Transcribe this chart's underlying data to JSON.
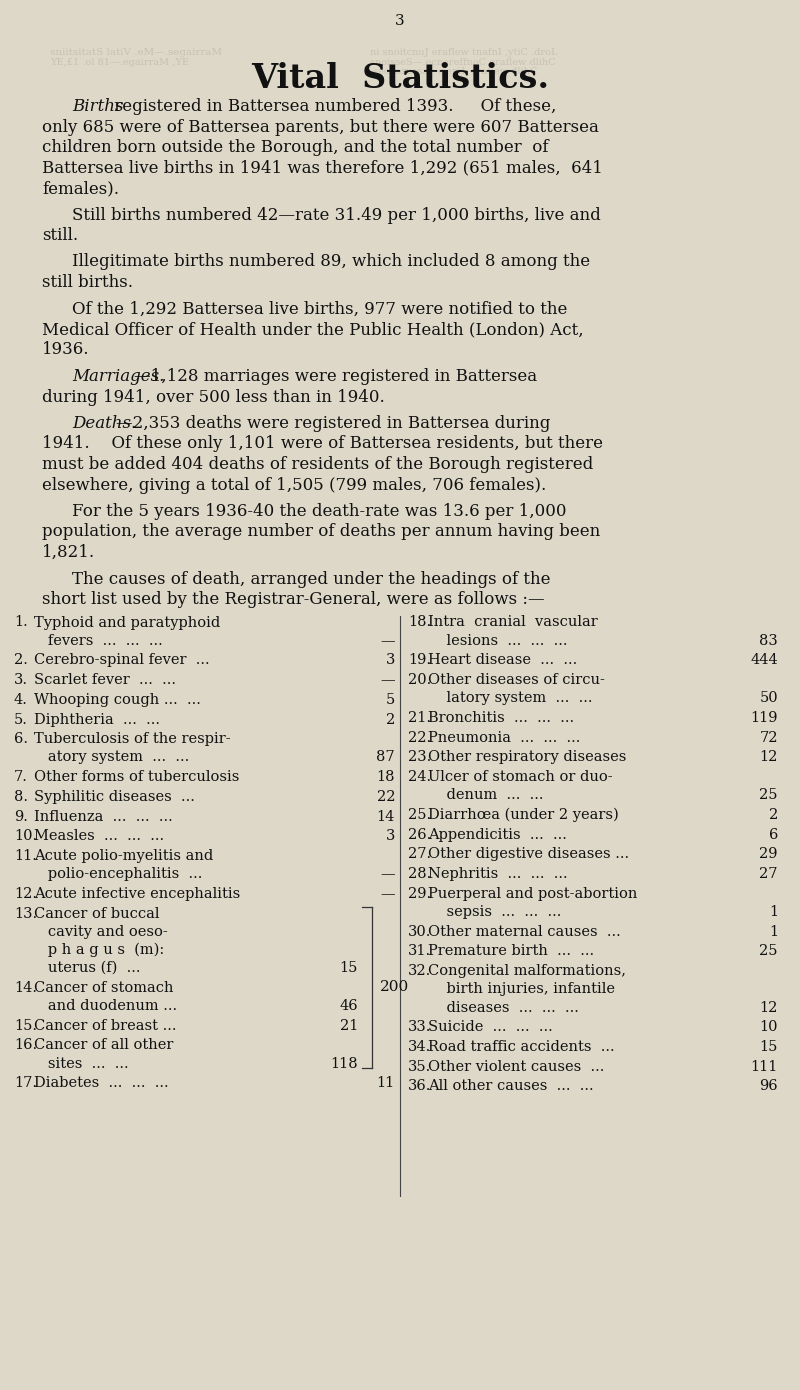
{
  "bg_color": "#ddd8c8",
  "text_color": "#111111",
  "faded_color": "#c0b8a8",
  "page_number": "3",
  "title": "Vital  Statistics.",
  "para1_lines": [
    [
      "italic",
      "Births",
      "normal",
      " registered in Battersea numbered 1393.   Of these,"
    ],
    [
      "normal",
      "only 685 were of Battersea parents, but there were 607 Battersea"
    ],
    [
      "normal",
      "children born outside the Borough, and the total number  of"
    ],
    [
      "normal",
      "Battersea live births in 1941 was therefore 1,292 (651 males,  641"
    ],
    [
      "normal",
      "females)."
    ]
  ],
  "para2_lines": [
    [
      "normal",
      "Still births numbered 42—rate 31.49 per 1,000 births, live and"
    ],
    [
      "normal",
      "still."
    ]
  ],
  "para3_lines": [
    [
      "normal",
      "Illegitimate births numbered 89, which included 8 among the"
    ],
    [
      "normal",
      "still births."
    ]
  ],
  "para4_lines": [
    [
      "normal",
      "Of the 1,292 Battersea live births, 977 were notified to the"
    ],
    [
      "normal",
      "Medical Officer of Health under the Public Health (London) Act,"
    ],
    [
      "normal",
      "1936."
    ]
  ],
  "para5_lines": [
    [
      "italic",
      "Marriages.",
      "normal",
      "—1,128 marriages were registered in Battersea"
    ],
    [
      "normal",
      "during 1941, over 500 less than in 1940."
    ]
  ],
  "para6_lines": [
    [
      "italic",
      "Deaths.",
      "normal",
      "—2,353 deaths were registered in Battersea during"
    ],
    [
      "normal",
      "1941.  Of these only 1,101 were of Battersea residents, but there"
    ],
    [
      "normal",
      "must be added 404 deaths of residents of the Borough registered"
    ],
    [
      "normal",
      "elsewhere, giving a total of 1,505 (799 males, 706 females)."
    ]
  ],
  "para7_lines": [
    [
      "normal",
      "For the 5 years 1936-40 the death-rate was 13.6 per 1,000"
    ],
    [
      "normal",
      "population, the average number of deaths per annum having been"
    ],
    [
      "normal",
      "1,821."
    ]
  ],
  "para8_lines": [
    [
      "normal",
      "The causes of death, arranged under the headings of the"
    ],
    [
      "normal",
      "short list used by the Registrar-General, were as follows :—"
    ]
  ],
  "left_rows": [
    {
      "num": "1.",
      "lines": [
        "Typhoid and paratyphoid",
        "   fevers  ...  ...  ..."
      ],
      "val": "—",
      "bracket": false
    },
    {
      "num": "2.",
      "lines": [
        "Cerebro-spinal fever  ..."
      ],
      "val": "3",
      "bracket": false
    },
    {
      "num": "3.",
      "lines": [
        "Scarlet fever  ...  ..."
      ],
      "val": "—",
      "bracket": false
    },
    {
      "num": "4.",
      "lines": [
        "Whooping cough ...  ..."
      ],
      "val": "5",
      "bracket": false
    },
    {
      "num": "5.",
      "lines": [
        "Diphtheria  ...  ..."
      ],
      "val": "2",
      "bracket": false
    },
    {
      "num": "6.",
      "lines": [
        "Tuberculosis of the respir-",
        "   atory system  ...  ..."
      ],
      "val": "87",
      "bracket": false
    },
    {
      "num": "7.",
      "lines": [
        "Other forms of tuberculosis"
      ],
      "val": "18",
      "bracket": false
    },
    {
      "num": "8.",
      "lines": [
        "Syphilitic diseases  ..."
      ],
      "val": "22",
      "bracket": false
    },
    {
      "num": "9.",
      "lines": [
        "Influenza  ...  ...  ..."
      ],
      "val": "14",
      "bracket": false
    },
    {
      "num": "10.",
      "lines": [
        "Measles  ...  ...  ..."
      ],
      "val": "3",
      "bracket": false
    },
    {
      "num": "11.",
      "lines": [
        "Acute polio-myelitis and",
        "   polio-encephalitis  ..."
      ],
      "val": "—",
      "bracket": false
    },
    {
      "num": "12.",
      "lines": [
        "Acute infective encephalitis"
      ],
      "val": "—",
      "bracket": false
    },
    {
      "num": "13.",
      "lines": [
        "Cancer of buccal",
        "   cavity and oeso-",
        "   p h a g u s  (m):",
        "   uterus (f)  ..."
      ],
      "val": "15",
      "bracket": true
    },
    {
      "num": "14.",
      "lines": [
        "Cancer of stomach",
        "   and duodenum ..."
      ],
      "val": "46",
      "bracket": true
    },
    {
      "num": "15.",
      "lines": [
        "Cancer of breast ..."
      ],
      "val": "21",
      "bracket": true
    },
    {
      "num": "16.",
      "lines": [
        "Cancer of all other",
        "   sites  ...  ..."
      ],
      "val": "118",
      "bracket": true
    },
    {
      "num": "17.",
      "lines": [
        "Diabetes  ...  ...  ..."
      ],
      "val": "11",
      "bracket": false
    }
  ],
  "bracket_combined": "200",
  "right_rows": [
    {
      "num": "18.",
      "lines": [
        "Intra  cranial  vascular",
        "    lesions  ...  ...  ..."
      ],
      "val": "83"
    },
    {
      "num": "19.",
      "lines": [
        "Heart disease  ...  ..."
      ],
      "val": "444"
    },
    {
      "num": "20.",
      "lines": [
        "Other diseases of circu-",
        "    latory system  ...  ..."
      ],
      "val": "50"
    },
    {
      "num": "21.",
      "lines": [
        "Bronchitis  ...  ...  ..."
      ],
      "val": "119"
    },
    {
      "num": "22.",
      "lines": [
        "Pneumonia  ...  ...  ..."
      ],
      "val": "72"
    },
    {
      "num": "23.",
      "lines": [
        "Other respiratory diseases"
      ],
      "val": "12"
    },
    {
      "num": "24.",
      "lines": [
        "Ulcer of stomach or duo-",
        "    denum  ...  ..."
      ],
      "val": "25"
    },
    {
      "num": "25.",
      "lines": [
        "Diarrhœa (under 2 years)"
      ],
      "val": "2"
    },
    {
      "num": "26.",
      "lines": [
        "Appendicitis  ...  ..."
      ],
      "val": "6"
    },
    {
      "num": "27.",
      "lines": [
        "Other digestive diseases ..."
      ],
      "val": "29"
    },
    {
      "num": "28.",
      "lines": [
        "Nephritis  ...  ...  ..."
      ],
      "val": "27"
    },
    {
      "num": "29.",
      "lines": [
        "Puerperal and post-abortion",
        "    sepsis  ...  ...  ..."
      ],
      "val": "1"
    },
    {
      "num": "30.",
      "lines": [
        "Other maternal causes  ..."
      ],
      "val": "1"
    },
    {
      "num": "31.",
      "lines": [
        "Premature birth  ...  ..."
      ],
      "val": "25"
    },
    {
      "num": "32.",
      "lines": [
        "Congenital malformations,",
        "    birth injuries, infantile",
        "    diseases  ...  ...  ..."
      ],
      "val": "12"
    },
    {
      "num": "33.",
      "lines": [
        "Suicide  ...  ...  ..."
      ],
      "val": "10"
    },
    {
      "num": "34.",
      "lines": [
        "Road traffic accidents  ..."
      ],
      "val": "15"
    },
    {
      "num": "35.",
      "lines": [
        "Other violent causes  ..."
      ],
      "val": "111"
    },
    {
      "num": "36.",
      "lines": [
        "All other causes  ...  ..."
      ],
      "val": "96"
    }
  ]
}
